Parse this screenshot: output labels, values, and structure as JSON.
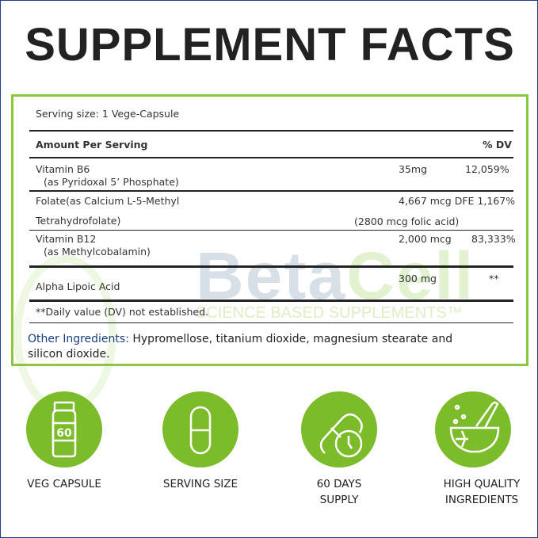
{
  "title": "SUPPLEMENT FACTS",
  "serving_size": "Serving size: 1 Vege-Capsule",
  "header": {
    "amount": "Amount Per Serving",
    "dv": "% DV"
  },
  "rows": [
    {
      "name": "Vitamin B6",
      "sub": "(as Pyridoxal 5’ Phosphate)",
      "amount": "35mg",
      "dv": "12,059%"
    },
    {
      "name": "Folate(as Calcium L-5-Methyl",
      "sub": "Tetrahydrofolate)",
      "amount": "4,667 mcg DFE 1,167%",
      "amount2": "(2800 mcg folic acid)"
    },
    {
      "name": "Vitamin B12",
      "sub": "(as Methylcobalamin)",
      "amount": "2,000 mcg",
      "dv": "83,333%"
    },
    {
      "name": "Alpha Lipoic Acid",
      "amount": "300 mg",
      "dv": "**"
    }
  ],
  "note": "**Daily value (DV) not established.",
  "other": {
    "label": "Other Ingredients:",
    "text": " Hypromellose, titanium dioxide, magnesium stearate and silicon dioxide."
  },
  "watermark": {
    "brand1": "Beta",
    "brand2": "Cell",
    "tagline": "SCIENCE BASED SUPPLEMENTS™"
  },
  "features": [
    {
      "icon": "bottle-icon",
      "label": "VEG CAPSULE",
      "bottle_number": "60"
    },
    {
      "icon": "capsule-icon",
      "label": "SERVING SIZE"
    },
    {
      "icon": "capsule-clock-icon",
      "label": "60 DAYS",
      "label2": "SUPPLY"
    },
    {
      "icon": "mortar-pestle-icon",
      "label": "HIGH QUALITY",
      "label2": "INGREDIENTS"
    }
  ],
  "colors": {
    "green": "#8dc63f",
    "icon_green": "#7cbb2a",
    "navy": "#1c3f7a"
  }
}
